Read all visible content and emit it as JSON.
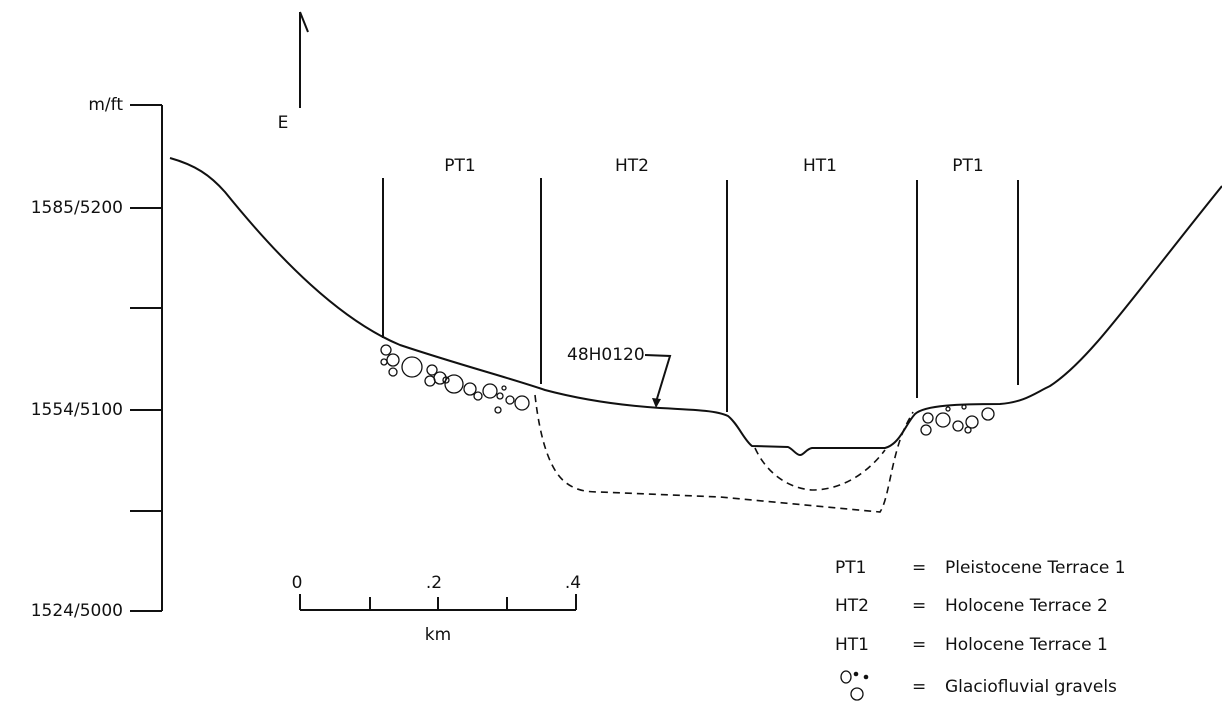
{
  "direction": "E",
  "axis": {
    "unit": "m/ft",
    "labels": [
      "1585/5200",
      "1554/5100",
      "1524/5000"
    ]
  },
  "terraces": [
    "PT1",
    "HT2",
    "HT1",
    "PT1"
  ],
  "site": "48H0120",
  "scale": {
    "labels": [
      "0",
      ".2",
      ".4"
    ],
    "unit": "km"
  },
  "legend": [
    {
      "symbol": "PT1",
      "sep": "=",
      "text": "Pleistocene Terrace 1"
    },
    {
      "symbol": "HT2",
      "sep": "=",
      "text": "Holocene Terrace 2"
    },
    {
      "symbol": "HT1",
      "sep": "=",
      "text": "Holocene Terrace 1"
    },
    {
      "sep": "=",
      "text": "Glaciofluvial gravels"
    }
  ]
}
